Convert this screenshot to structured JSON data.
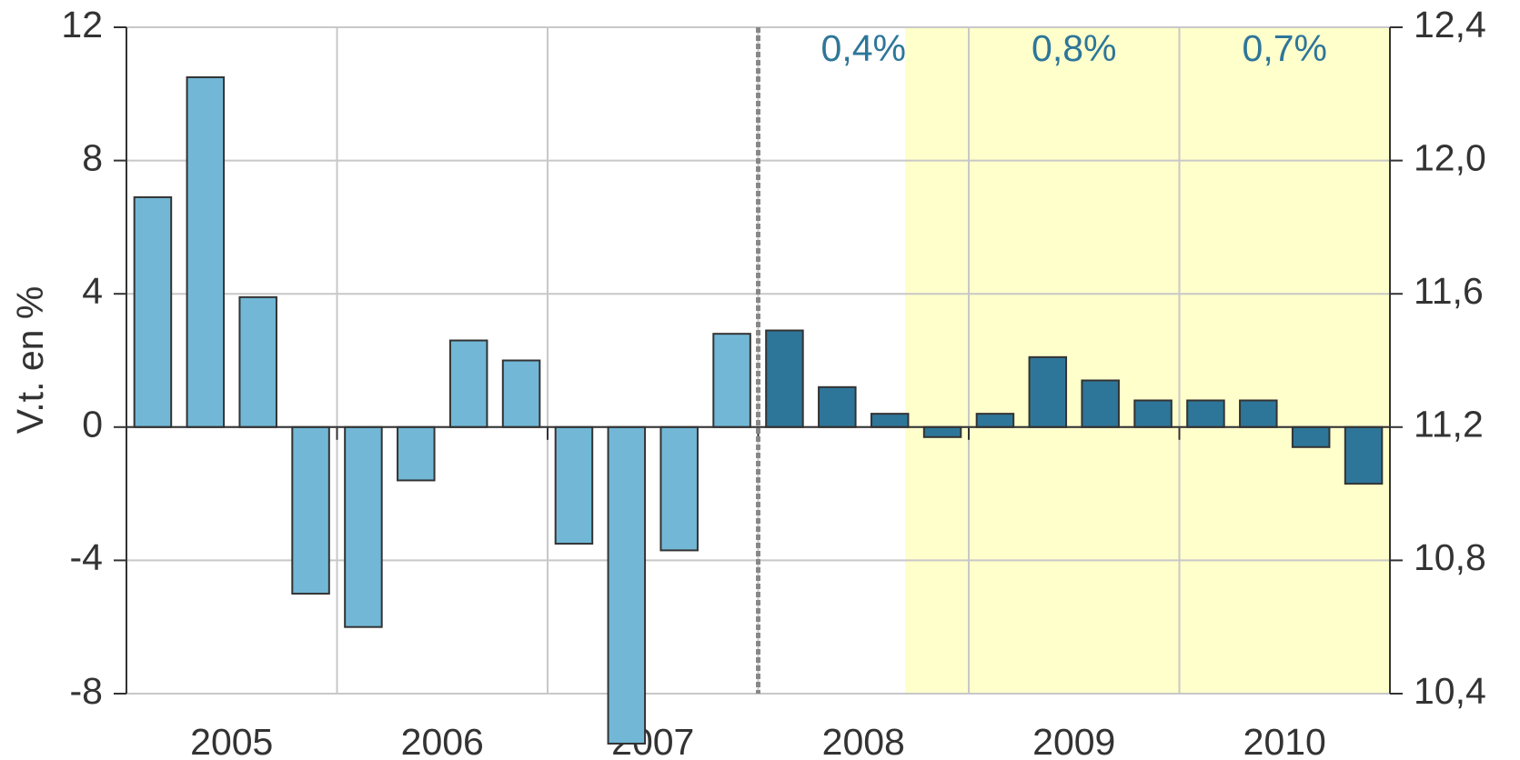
{
  "chart_data": {
    "type": "bar",
    "ylabel": "V.t. en %",
    "groups": [
      "2005",
      "2006",
      "2007",
      "2008",
      "2009",
      "2010"
    ],
    "values": [
      6.9,
      10.5,
      3.9,
      -5.0,
      -6.0,
      -1.6,
      2.6,
      2.0,
      -3.5,
      -9.5,
      -3.7,
      2.8,
      2.9,
      1.2,
      0.4,
      -0.3,
      0.4,
      2.1,
      1.4,
      0.8,
      0.8,
      0.8,
      -0.6,
      -1.7
    ],
    "bar_colors": [
      "#72b8d6",
      "#72b8d6",
      "#72b8d6",
      "#72b8d6",
      "#72b8d6",
      "#72b8d6",
      "#72b8d6",
      "#72b8d6",
      "#72b8d6",
      "#72b8d6",
      "#72b8d6",
      "#72b8d6",
      "#2e7699",
      "#2e7699",
      "#2e7699",
      "#2e7699",
      "#2e7699",
      "#2e7699",
      "#2e7699",
      "#2e7699",
      "#2e7699",
      "#2e7699",
      "#2e7699",
      "#2e7699"
    ],
    "annotations": [
      "0,4%",
      "0,8%",
      "0,7%"
    ],
    "ylim": [
      -8,
      12
    ],
    "yticks": [
      -8,
      -4,
      0,
      4,
      8,
      12
    ],
    "y2lim": [
      10.4,
      12.4
    ],
    "y2ticks": [
      {
        "value": 10.4,
        "label": "10,4"
      },
      {
        "value": 10.8,
        "label": "10,8"
      },
      {
        "value": 11.2,
        "label": "11,2"
      },
      {
        "value": 11.6,
        "label": "11,6"
      },
      {
        "value": 12.0,
        "label": "12,0"
      },
      {
        "value": 12.4,
        "label": "12,4"
      }
    ],
    "grid": true
  }
}
